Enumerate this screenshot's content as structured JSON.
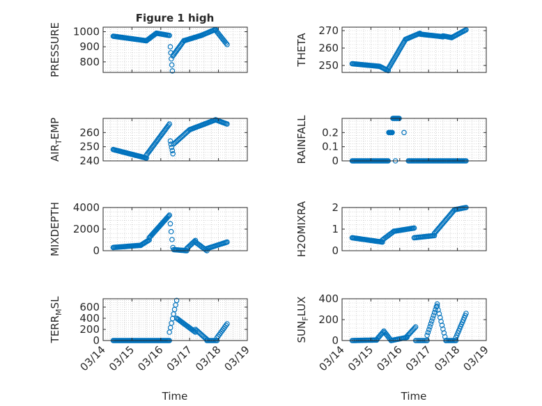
{
  "figure": {
    "title": "Figure 1 high",
    "xlabel": "Time"
  },
  "colors": {
    "marker": "#0072BD",
    "axis": "#262626",
    "grid": "#b8b8b8",
    "background": "#ffffff"
  },
  "chart_data": [
    {
      "id": "pressure",
      "type": "scatter",
      "title": "Figure 1 high",
      "ylabel": "PRESSURE",
      "ylim": [
        730,
        1030
      ],
      "yticks": [
        800,
        900,
        1000
      ],
      "xlim": [
        0,
        5
      ],
      "xticks": [
        "03/14",
        "03/15",
        "03/16",
        "03/17",
        "03/18",
        "03/19"
      ],
      "show_xticklabels": false,
      "grid": "minor-dotted",
      "segments": [
        {
          "t0": 0.35,
          "t1": 1.5,
          "n": 40,
          "y0": 970,
          "y1": 940
        },
        {
          "t0": 1.5,
          "t1": 1.85,
          "n": 14,
          "y0": 940,
          "y1": 990
        },
        {
          "t0": 1.85,
          "t1": 2.3,
          "n": 14,
          "y0": 990,
          "y1": 975
        },
        {
          "t0": 2.33,
          "t1": 2.4,
          "n": 5,
          "y0": 900,
          "y1": 740
        },
        {
          "t0": 2.42,
          "t1": 2.8,
          "n": 14,
          "y0": 840,
          "y1": 940
        },
        {
          "t0": 2.8,
          "t1": 3.4,
          "n": 20,
          "y0": 940,
          "y1": 975
        },
        {
          "t0": 3.4,
          "t1": 3.9,
          "n": 16,
          "y0": 975,
          "y1": 1015
        },
        {
          "t0": 3.9,
          "t1": 4.3,
          "n": 12,
          "y0": 1010,
          "y1": 915
        }
      ]
    },
    {
      "id": "theta",
      "type": "scatter",
      "ylabel": "THETA",
      "ylim": [
        246,
        272
      ],
      "yticks": [
        250,
        260,
        270
      ],
      "xlim": [
        0,
        5
      ],
      "xticks": [
        "03/14",
        "03/15",
        "03/16",
        "03/17",
        "03/18",
        "03/19"
      ],
      "show_xticklabels": false,
      "grid": "minor-dotted",
      "segments": [
        {
          "t0": 0.35,
          "t1": 1.3,
          "n": 30,
          "y0": 251,
          "y1": 249.5
        },
        {
          "t0": 1.3,
          "t1": 1.6,
          "n": 10,
          "y0": 249.5,
          "y1": 247
        },
        {
          "t0": 1.6,
          "t1": 2.2,
          "n": 26,
          "y0": 248,
          "y1": 265
        },
        {
          "t0": 2.2,
          "t1": 2.7,
          "n": 16,
          "y0": 265,
          "y1": 268.5
        },
        {
          "t0": 2.7,
          "t1": 3.5,
          "n": 26,
          "y0": 268,
          "y1": 266.5
        },
        {
          "t0": 3.5,
          "t1": 3.8,
          "n": 10,
          "y0": 267,
          "y1": 266
        },
        {
          "t0": 3.8,
          "t1": 4.3,
          "n": 16,
          "y0": 266,
          "y1": 270.5
        }
      ]
    },
    {
      "id": "air_temp",
      "type": "scatter",
      "ylabel": "AIR",
      "ylabel_sub": "T",
      "ylabel_suffix": "EMP",
      "ylim": [
        240,
        270
      ],
      "yticks": [
        240,
        250,
        260
      ],
      "xlim": [
        0,
        5
      ],
      "xticks": [
        "03/14",
        "03/15",
        "03/16",
        "03/17",
        "03/18",
        "03/19"
      ],
      "show_xticklabels": false,
      "grid": "minor-dotted",
      "segments": [
        {
          "t0": 0.35,
          "t1": 1.5,
          "n": 40,
          "y0": 248,
          "y1": 242
        },
        {
          "t0": 1.5,
          "t1": 2.3,
          "n": 26,
          "y0": 244,
          "y1": 266
        },
        {
          "t0": 2.33,
          "t1": 2.42,
          "n": 5,
          "y0": 254,
          "y1": 245
        },
        {
          "t0": 2.45,
          "t1": 3.0,
          "n": 16,
          "y0": 252,
          "y1": 262
        },
        {
          "t0": 3.0,
          "t1": 3.9,
          "n": 28,
          "y0": 262,
          "y1": 269
        },
        {
          "t0": 3.9,
          "t1": 4.3,
          "n": 12,
          "y0": 269,
          "y1": 266
        }
      ]
    },
    {
      "id": "rainfall",
      "type": "scatter",
      "ylabel": "RAINFALL",
      "ylim": [
        0,
        0.3
      ],
      "yticks": [
        0,
        0.1,
        0.2
      ],
      "xlim": [
        0,
        5
      ],
      "xticks": [
        "03/14",
        "03/15",
        "03/16",
        "03/17",
        "03/18",
        "03/19"
      ],
      "show_xticklabels": false,
      "grid": "minor-dotted",
      "segments": [
        {
          "t0": 0.35,
          "t1": 1.6,
          "n": 44,
          "y0": 0,
          "y1": 0
        },
        {
          "t0": 1.62,
          "t1": 1.74,
          "n": 7,
          "y0": 0.2,
          "y1": 0.2
        },
        {
          "t0": 1.76,
          "t1": 1.98,
          "n": 10,
          "y0": 0.3,
          "y1": 0.3
        },
        {
          "t0": 1.85,
          "t1": 1.85,
          "n": 1,
          "y0": 0,
          "y1": 0
        },
        {
          "t0": 2.15,
          "t1": 2.15,
          "n": 1,
          "y0": 0.2,
          "y1": 0.2
        },
        {
          "t0": 2.3,
          "t1": 4.3,
          "n": 60,
          "y0": 0,
          "y1": 0
        }
      ]
    },
    {
      "id": "mixdepth",
      "type": "scatter",
      "ylabel": "MIXDEPTH",
      "ylim": [
        0,
        4000
      ],
      "yticks": [
        0,
        2000,
        4000
      ],
      "xlim": [
        0,
        5
      ],
      "xticks": [
        "03/14",
        "03/15",
        "03/16",
        "03/17",
        "03/18",
        "03/19"
      ],
      "show_xticklabels": false,
      "grid": "minor-dotted",
      "segments": [
        {
          "t0": 0.35,
          "t1": 1.3,
          "n": 30,
          "y0": 300,
          "y1": 500
        },
        {
          "t0": 1.3,
          "t1": 1.6,
          "n": 10,
          "y0": 500,
          "y1": 1000
        },
        {
          "t0": 1.6,
          "t1": 2.3,
          "n": 26,
          "y0": 1200,
          "y1": 3300
        },
        {
          "t0": 2.33,
          "t1": 2.42,
          "n": 4,
          "y0": 2500,
          "y1": 300
        },
        {
          "t0": 2.45,
          "t1": 2.9,
          "n": 14,
          "y0": 100,
          "y1": 0
        },
        {
          "t0": 2.9,
          "t1": 3.2,
          "n": 10,
          "y0": 200,
          "y1": 950
        },
        {
          "t0": 3.2,
          "t1": 3.6,
          "n": 12,
          "y0": 800,
          "y1": 0
        },
        {
          "t0": 3.6,
          "t1": 4.3,
          "n": 20,
          "y0": 200,
          "y1": 800
        }
      ]
    },
    {
      "id": "h2omixra",
      "type": "scatter",
      "ylabel": "H2OMIXRA",
      "ylim": [
        0,
        2
      ],
      "yticks": [
        0,
        1,
        2
      ],
      "xlim": [
        0,
        5
      ],
      "xticks": [
        "03/14",
        "03/15",
        "03/16",
        "03/17",
        "03/18",
        "03/19"
      ],
      "show_xticklabels": false,
      "grid": "minor-dotted",
      "segments": [
        {
          "t0": 0.35,
          "t1": 1.4,
          "n": 34,
          "y0": 0.6,
          "y1": 0.4
        },
        {
          "t0": 1.4,
          "t1": 1.8,
          "n": 12,
          "y0": 0.5,
          "y1": 0.9
        },
        {
          "t0": 1.8,
          "t1": 2.5,
          "n": 22,
          "y0": 0.9,
          "y1": 1.05
        },
        {
          "t0": 2.5,
          "t1": 3.2,
          "n": 20,
          "y0": 0.6,
          "y1": 0.7
        },
        {
          "t0": 3.2,
          "t1": 3.9,
          "n": 22,
          "y0": 0.8,
          "y1": 1.9
        },
        {
          "t0": 3.9,
          "t1": 4.3,
          "n": 12,
          "y0": 1.9,
          "y1": 2.0
        }
      ]
    },
    {
      "id": "terr_msl",
      "type": "scatter",
      "ylabel": "TERR",
      "ylabel_sub": "M",
      "ylabel_suffix": "SL",
      "ylim": [
        0,
        750
      ],
      "yticks": [
        0,
        200,
        400,
        600
      ],
      "xlim": [
        0,
        5
      ],
      "xticks": [
        "03/14",
        "03/15",
        "03/16",
        "03/17",
        "03/18",
        "03/19"
      ],
      "show_xticklabels": true,
      "grid": "minor-dotted",
      "segments": [
        {
          "t0": 0.35,
          "t1": 2.3,
          "n": 64,
          "y0": 0,
          "y1": 0
        },
        {
          "t0": 2.3,
          "t1": 2.55,
          "n": 8,
          "y0": 150,
          "y1": 720
        },
        {
          "t0": 2.55,
          "t1": 3.2,
          "n": 20,
          "y0": 400,
          "y1": 150
        },
        {
          "t0": 3.2,
          "t1": 3.6,
          "n": 12,
          "y0": 200,
          "y1": 20
        },
        {
          "t0": 3.6,
          "t1": 3.95,
          "n": 10,
          "y0": 0,
          "y1": 0
        },
        {
          "t0": 3.95,
          "t1": 4.3,
          "n": 10,
          "y0": 50,
          "y1": 300
        }
      ]
    },
    {
      "id": "sun_flux",
      "type": "scatter",
      "ylabel": "SUN",
      "ylabel_sub": "F",
      "ylabel_suffix": "LUX",
      "ylim": [
        0,
        400
      ],
      "yticks": [
        0,
        200,
        400
      ],
      "xlim": [
        0,
        5
      ],
      "xticks": [
        "03/14",
        "03/15",
        "03/16",
        "03/17",
        "03/18",
        "03/19"
      ],
      "show_xticklabels": true,
      "grid": "minor-dotted",
      "segments": [
        {
          "t0": 0.35,
          "t1": 1.2,
          "n": 24,
          "y0": 0,
          "y1": 5
        },
        {
          "t0": 1.2,
          "t1": 1.45,
          "n": 8,
          "y0": 10,
          "y1": 90
        },
        {
          "t0": 1.45,
          "t1": 1.7,
          "n": 8,
          "y0": 90,
          "y1": 0
        },
        {
          "t0": 1.7,
          "t1": 2.25,
          "n": 16,
          "y0": 0,
          "y1": 30
        },
        {
          "t0": 2.25,
          "t1": 2.55,
          "n": 10,
          "y0": 40,
          "y1": 130
        },
        {
          "t0": 2.55,
          "t1": 2.95,
          "n": 10,
          "y0": 0,
          "y1": 0
        },
        {
          "t0": 2.95,
          "t1": 3.3,
          "n": 12,
          "y0": 50,
          "y1": 350
        },
        {
          "t0": 3.3,
          "t1": 3.6,
          "n": 10,
          "y0": 330,
          "y1": 0
        },
        {
          "t0": 3.6,
          "t1": 3.95,
          "n": 10,
          "y0": 0,
          "y1": 0
        },
        {
          "t0": 3.95,
          "t1": 4.3,
          "n": 12,
          "y0": 30,
          "y1": 260
        }
      ]
    }
  ]
}
